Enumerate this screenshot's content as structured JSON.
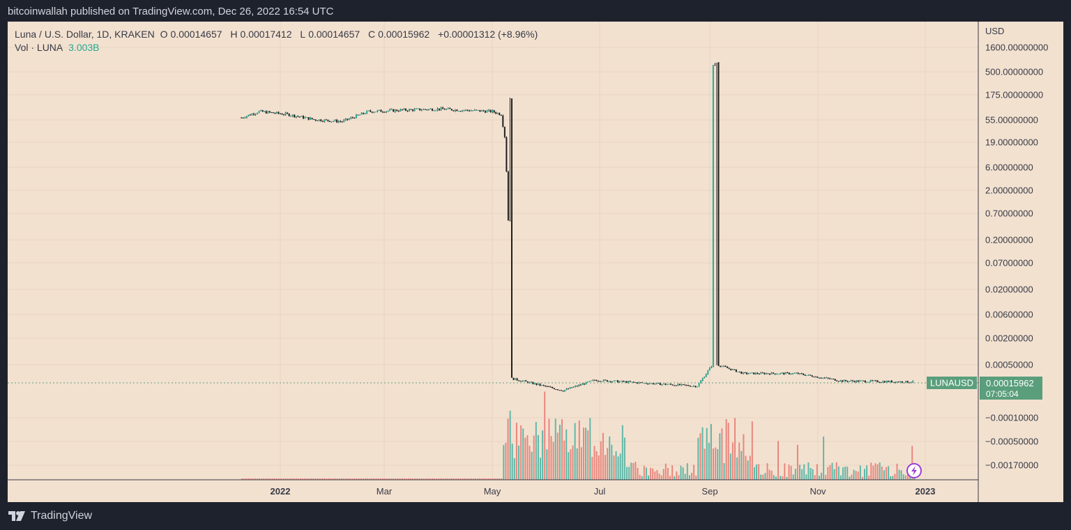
{
  "header": {
    "published": "bitcoinwallah published on TradingView.com, Dec 26, 2022 16:54 UTC"
  },
  "legend": {
    "symbol": "Luna / U.S. Dollar, 1D, KRAKEN",
    "open_label": "O",
    "open": "0.00014657",
    "high_label": "H",
    "high": "0.00017412",
    "low_label": "L",
    "low": "0.00014657",
    "close_label": "C",
    "close": "0.00015962",
    "change": "+0.00001312 (+8.96%)",
    "vol_label": "Vol · LUNA",
    "vol_value": "3.003B"
  },
  "price_axis": {
    "currency": "USD",
    "current_price": "0.00015962",
    "countdown": "07:05:04",
    "symbol_tag": "LUNAUSD"
  },
  "footer": {
    "brand": "TradingView"
  },
  "colors": {
    "background": "#f3e1d0",
    "up": "#22ab94",
    "down": "#b33030",
    "volume_up": "#5fb8a8",
    "volume_down": "#e8877e",
    "price_tag": "#5a9e7c"
  },
  "chart_data": {
    "type": "candlestick",
    "title": "Luna / U.S. Dollar, 1D, KRAKEN",
    "yscale": "log",
    "y_ticks": [
      "1600.00000000",
      "500.00000000",
      "175.00000000",
      "55.00000000",
      "19.00000000",
      "6.00000000",
      "2.00000000",
      "0.70000000",
      "0.20000000",
      "0.07000000",
      "0.02000000",
      "0.00600000",
      "0.00200000",
      "0.00050000",
      "−0.00010000",
      "−0.00050000",
      "−0.00170000"
    ],
    "x_ticks": [
      "2022",
      "Mar",
      "May",
      "Jul",
      "Sep",
      "Nov",
      "2023"
    ],
    "price_path": [
      {
        "date": "2021-12-10",
        "close": 60
      },
      {
        "date": "2021-12-20",
        "close": 80
      },
      {
        "date": "2022-01-05",
        "close": 70
      },
      {
        "date": "2022-01-20",
        "close": 55
      },
      {
        "date": "2022-02-05",
        "close": 50
      },
      {
        "date": "2022-02-20",
        "close": 80
      },
      {
        "date": "2022-03-10",
        "close": 85
      },
      {
        "date": "2022-04-01",
        "close": 90
      },
      {
        "date": "2022-04-15",
        "close": 85
      },
      {
        "date": "2022-05-01",
        "close": 80
      },
      {
        "date": "2022-05-06",
        "close": 70
      },
      {
        "date": "2022-05-08",
        "close": 25
      },
      {
        "date": "2022-05-10",
        "close": 1
      },
      {
        "date": "2022-05-11",
        "close": 0.003
      },
      {
        "date": "2022-05-12",
        "close": 0.0002
      },
      {
        "date": "2022-06-10",
        "close": 9e-05
      },
      {
        "date": "2022-06-28",
        "close": 0.00018
      },
      {
        "date": "2022-08-25",
        "close": 0.00012
      },
      {
        "date": "2022-09-03",
        "close": 0.00055
      },
      {
        "date": "2022-09-20",
        "close": 0.00028
      },
      {
        "date": "2022-10-20",
        "close": 0.00028
      },
      {
        "date": "2022-11-15",
        "close": 0.00017
      },
      {
        "date": "2022-12-26",
        "close": 0.00015962
      }
    ],
    "last": {
      "open": 0.00014657,
      "high": 0.00017412,
      "low": 0.00014657,
      "close": 0.00015962,
      "change": 1.312e-05,
      "change_pct": 8.96
    },
    "volume_last": "3.003B"
  }
}
